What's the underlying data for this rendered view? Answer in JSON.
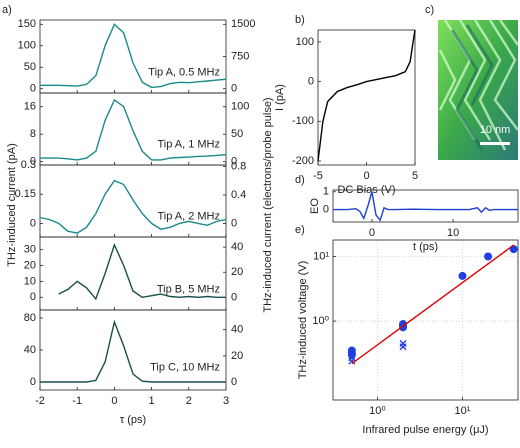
{
  "panel_a": {
    "label": "a)",
    "ylabel": "THz-induced current (pA)",
    "y2label": "THz-induced current (electrons/probe pulse)"
  },
  "panel_c": {
    "label": "c)",
    "scale_bar": "10 nm"
  },
  "chart_data": [
    {
      "type": "line",
      "annotation": "Tip A, 0.5 MHz",
      "x": [
        -2,
        -1.75,
        -1.5,
        -1.25,
        -1,
        -0.75,
        -0.5,
        -0.25,
        0,
        0.25,
        0.5,
        0.75,
        1,
        1.25,
        1.5,
        1.75,
        2,
        2.25,
        2.5,
        2.75,
        3
      ],
      "series": [
        {
          "color": "#1a8a8a",
          "values": [
            8,
            8,
            8,
            7,
            6,
            10,
            30,
            100,
            150,
            130,
            60,
            15,
            3,
            5,
            12,
            15,
            14,
            16,
            18,
            20,
            22
          ]
        }
      ],
      "xlim": [
        -2,
        3
      ],
      "xticks": [
        -2,
        -1,
        0,
        1,
        2,
        3
      ],
      "ylim": [
        -10,
        160
      ],
      "yticks": [
        0,
        50,
        100,
        150
      ],
      "y2lim": [
        -100,
        1600
      ],
      "y2ticks": [
        0,
        750,
        1500
      ]
    },
    {
      "type": "line",
      "annotation": "Tip A, 1 MHz",
      "x": [
        -2,
        -1.75,
        -1.5,
        -1.25,
        -1,
        -0.75,
        -0.5,
        -0.25,
        0,
        0.25,
        0.5,
        0.75,
        1,
        1.25,
        1.5,
        1.75,
        2,
        2.25,
        2.5,
        2.75,
        3
      ],
      "series": [
        {
          "color": "#1a8a8a",
          "values": [
            1,
            1,
            1,
            0.8,
            0.5,
            1,
            3,
            12,
            18,
            16,
            9,
            3,
            0.5,
            0.5,
            1,
            1.2,
            1.3,
            1.5,
            1.6,
            1.8,
            2
          ]
        }
      ],
      "xlim": [
        -2,
        3
      ],
      "xticks": [
        -2,
        -1,
        0,
        1,
        2,
        3
      ],
      "ylim": [
        -1,
        20
      ],
      "yticks": [
        0,
        8,
        16
      ],
      "y2lim": [
        -6,
        125
      ],
      "y2ticks": [
        0,
        50,
        100
      ]
    },
    {
      "type": "line",
      "annotation": "Tip A, 2 MHz",
      "x": [
        -2,
        -1.75,
        -1.5,
        -1.25,
        -1,
        -0.75,
        -0.5,
        -0.25,
        0,
        0.25,
        0.5,
        0.75,
        1,
        1.25,
        1.5,
        1.75,
        2,
        2.25,
        2.5,
        2.75,
        3
      ],
      "series": [
        {
          "color": "#1a8a8a",
          "values": [
            0.03,
            0.02,
            0,
            -0.04,
            -0.05,
            -0.02,
            0.05,
            0.15,
            0.22,
            0.2,
            0.12,
            0.05,
            0,
            -0.03,
            -0.02,
            0,
            0.01,
            0,
            -0.01,
            0.01,
            0.02
          ]
        }
      ],
      "xlim": [
        -2,
        3
      ],
      "xticks": [
        -2,
        -1,
        0,
        1,
        2,
        3
      ],
      "ylim": [
        -0.07,
        0.3
      ],
      "yticks": [
        0,
        0.15,
        0.3
      ],
      "y2lim": [
        -0.19,
        0.82
      ],
      "y2ticks": [
        0,
        0.4,
        0.8
      ]
    },
    {
      "type": "line",
      "annotation": "Tip B, 5 MHz",
      "x": [
        -2,
        -1.75,
        -1.5,
        -1.25,
        -1,
        -0.75,
        -0.5,
        -0.25,
        0,
        0.25,
        0.5,
        0.75,
        1,
        1.25,
        1.5,
        1.75,
        2,
        2.25,
        2.5,
        2.75,
        3
      ],
      "series": [
        {
          "color": "#1a4d4d",
          "values": [
            null,
            null,
            2,
            5,
            10,
            6,
            -1,
            15,
            33,
            20,
            4,
            0,
            1,
            2,
            0.5,
            0,
            0.5,
            0,
            0.5,
            0,
            0
          ]
        }
      ],
      "xlim": [
        -2,
        3
      ],
      "xticks": [
        -2,
        -1,
        0,
        1,
        2,
        3
      ],
      "ylim": [
        -8,
        38
      ],
      "yticks": [
        0,
        10,
        20,
        30
      ],
      "y2lim": [
        -10,
        48
      ],
      "y2ticks": [
        0,
        20,
        40
      ]
    },
    {
      "type": "line",
      "annotation": "Tip C, 10 MHz",
      "xlabel": "τ (ps)",
      "x": [
        -2,
        -1.75,
        -1.5,
        -1.25,
        -1,
        -0.75,
        -0.5,
        -0.25,
        0,
        0.25,
        0.5,
        0.75,
        1,
        1.25,
        1.5,
        1.75,
        2,
        2.25,
        2.5,
        2.75,
        3
      ],
      "series": [
        {
          "color": "#1a4d4d",
          "values": [
            0,
            0,
            0,
            0,
            0,
            0,
            2,
            25,
            75,
            45,
            10,
            1,
            0,
            0,
            0,
            0,
            0,
            0,
            0,
            0,
            0
          ]
        }
      ],
      "xlim": [
        -2,
        3
      ],
      "xticks": [
        -2,
        -1,
        0,
        1,
        2,
        3
      ],
      "ylim": [
        -10,
        90
      ],
      "yticks": [
        0,
        40,
        80
      ],
      "y2lim": [
        -6,
        55
      ],
      "y2ticks": [
        0,
        20,
        40
      ]
    },
    {
      "type": "line",
      "panel_label": "b)",
      "xlabel": "DC Bias (V)",
      "ylabel": "I (pA)",
      "x": [
        -5,
        -4.5,
        -4,
        -3,
        -2,
        -1,
        0,
        1,
        2,
        3,
        4,
        4.5,
        4.8,
        5
      ],
      "series": [
        {
          "color": "#000000",
          "values": [
            -200,
            -100,
            -50,
            -25,
            -15,
            -8,
            0,
            5,
            10,
            15,
            25,
            50,
            100,
            130
          ]
        }
      ],
      "xlim": [
        -5,
        5
      ],
      "xticks": [
        -5,
        0,
        5
      ],
      "ylim": [
        -210,
        130
      ],
      "yticks": [
        -200,
        -100,
        0,
        100
      ]
    },
    {
      "type": "line",
      "panel_label": "d)",
      "xlabel": "t (ps)",
      "ylabel": "EO",
      "x": [
        -4.8,
        -3,
        -2,
        -1.5,
        -1,
        -0.5,
        0,
        0.5,
        1,
        1.5,
        2,
        3,
        5,
        8,
        10,
        12,
        13,
        13.5,
        14,
        14.5,
        15,
        16,
        18
      ],
      "series": [
        {
          "color": "#1f3fd0",
          "values": [
            0,
            0,
            0.05,
            -0.1,
            -0.5,
            0.2,
            1,
            -0.3,
            -0.6,
            0.1,
            0,
            0,
            0.02,
            0,
            0,
            0,
            0.1,
            -0.15,
            0.1,
            -0.05,
            0,
            0,
            0
          ]
        }
      ],
      "xlim": [
        -4.8,
        18
      ],
      "xticks": [
        0,
        10
      ],
      "ylim": [
        -0.7,
        1.1
      ],
      "yticks": [
        0,
        1
      ]
    },
    {
      "type": "scatter",
      "panel_label": "e)",
      "xlabel": "Infrared pulse energy (μJ)",
      "ylabel": "THz-induced voltage (V)",
      "xscale": "log",
      "yscale": "log",
      "grid": true,
      "series": [
        {
          "color": "#1f3fe0",
          "marker": "circle",
          "x": [
            0.5,
            0.5,
            0.5,
            2,
            2,
            2,
            10,
            20,
            40
          ],
          "values": [
            0.35,
            0.32,
            0.3,
            0.9,
            0.85,
            0.8,
            5,
            10,
            13
          ]
        },
        {
          "color": "#1f3fe0",
          "marker": "x",
          "x": [
            0.5,
            0.5,
            2,
            2
          ],
          "values": [
            0.27,
            0.24,
            0.45,
            0.4
          ]
        },
        {
          "color": "#e00000",
          "type": "line",
          "x": [
            0.5,
            40
          ],
          "values": [
            0.22,
            15
          ]
        }
      ],
      "xlim": [
        0.3,
        45
      ],
      "xticks": [
        {
          "value": 1,
          "label": "10⁰"
        },
        {
          "value": 10,
          "label": "10¹"
        }
      ],
      "ylim": [
        0.06,
        18
      ],
      "yticks": [
        {
          "value": 1,
          "label": "10⁰"
        },
        {
          "value": 10,
          "label": "10¹"
        }
      ]
    }
  ]
}
